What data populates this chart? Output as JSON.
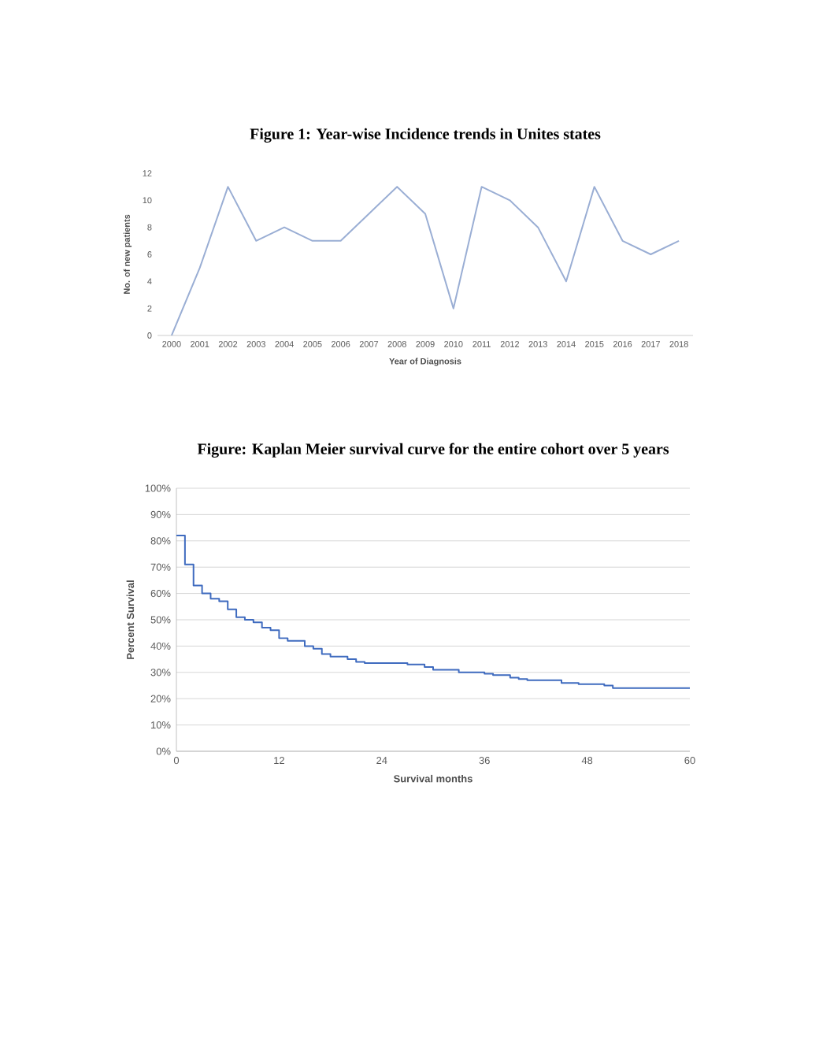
{
  "chart_data": [
    {
      "type": "line",
      "title": "Figure 1: Year-wise Incidence trends in Unites states",
      "xlabel": "Year of Diagnosis",
      "ylabel": "No. of new patients",
      "categories": [
        "2000",
        "2001",
        "2002",
        "2003",
        "2004",
        "2005",
        "2006",
        "2007",
        "2008",
        "2009",
        "2010",
        "2011",
        "2012",
        "2013",
        "2014",
        "2015",
        "2016",
        "2017",
        "2018"
      ],
      "values": [
        0,
        5,
        11,
        7,
        8,
        7,
        7,
        9,
        11,
        9,
        2,
        11,
        10,
        8,
        4,
        11,
        7,
        6,
        7
      ],
      "color": "#9aaed4",
      "ylim": [
        0,
        12
      ],
      "yticks": [
        0,
        2,
        4,
        6,
        8,
        10,
        12
      ],
      "grid": false,
      "marker": "none"
    },
    {
      "type": "step",
      "title": "Figure: Kaplan Meier survival curve for the entire cohort over 5 years",
      "xlabel": "Survival months",
      "ylabel": "Percent Survival",
      "x": [
        0,
        1,
        2,
        3,
        4,
        5,
        6,
        7,
        8,
        9,
        10,
        11,
        12,
        13,
        14,
        15,
        16,
        17,
        18,
        20,
        21,
        22,
        27,
        29,
        30,
        33,
        36,
        37,
        39,
        40,
        41,
        45,
        47,
        50,
        51,
        60
      ],
      "values": [
        82,
        71,
        63,
        60,
        58,
        57,
        54,
        51,
        50,
        49,
        47,
        46,
        43,
        42,
        42,
        40,
        39,
        37,
        36,
        35,
        34,
        33.5,
        33,
        32,
        31,
        30,
        29.5,
        29,
        28,
        27.5,
        27,
        26,
        25.5,
        25,
        24,
        24
      ],
      "color": "#3f6bbf",
      "xlim": [
        0,
        60
      ],
      "xticks": [
        0,
        12,
        24,
        36,
        48,
        60
      ],
      "ylim": [
        0,
        100
      ],
      "yticks": [
        {
          "value": 0,
          "label": "0%"
        },
        {
          "value": 10,
          "label": "10%"
        },
        {
          "value": 20,
          "label": "20%"
        },
        {
          "value": 30,
          "label": "30%"
        },
        {
          "value": 40,
          "label": "40%"
        },
        {
          "value": 50,
          "label": "50%"
        },
        {
          "value": 60,
          "label": "60%"
        },
        {
          "value": 70,
          "label": "70%"
        },
        {
          "value": 80,
          "label": "80%"
        },
        {
          "value": 90,
          "label": "90%"
        },
        {
          "value": 100,
          "label": "100%"
        }
      ],
      "grid": "y",
      "marker": "none"
    }
  ]
}
